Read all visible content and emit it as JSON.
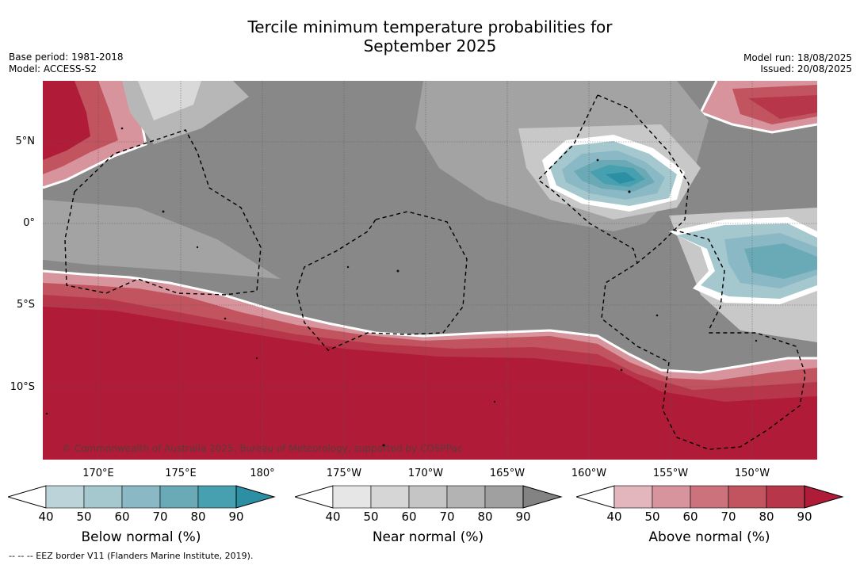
{
  "title_line1": "Tercile minimum temperature probabilities for",
  "title_line2": "September 2025",
  "base_period": "Base period: 1981-2018",
  "model": "Model: ACCESS-S2",
  "model_run": "Model run: 18/08/2025",
  "issued": "Issued: 20/08/2025",
  "lat_labels": [
    "5°N",
    "0°",
    "5°S",
    "10°S"
  ],
  "lon_labels": [
    "170°E",
    "175°E",
    "180°",
    "175°W",
    "170°W",
    "165°W",
    "160°W",
    "155°W",
    "150°W"
  ],
  "credit": "© Commonwealth of Australia 2025, Bureau of Meteorology, supported by COSPPac",
  "footer": "--  --  -- EEZ border V11 (Flanders Marine Institute, 2019).",
  "colorbars": [
    {
      "label": "Below normal (%)",
      "ticks": [
        "40",
        "50",
        "60",
        "70",
        "80",
        "90"
      ],
      "colors": [
        "#ffffff",
        "#bcd3da",
        "#a5c8cf",
        "#8ab9c5",
        "#6aaab7",
        "#47a0b0",
        "#2c8fa3"
      ]
    },
    {
      "label": "Near normal (%)",
      "ticks": [
        "40",
        "50",
        "60",
        "70",
        "80",
        "90"
      ],
      "colors": [
        "#ffffff",
        "#e6e6e6",
        "#d6d6d6",
        "#c5c5c5",
        "#b3b3b3",
        "#a0a0a0",
        "#838383"
      ]
    },
    {
      "label": "Above normal (%)",
      "ticks": [
        "40",
        "50",
        "60",
        "70",
        "80",
        "90"
      ],
      "colors": [
        "#ffffff",
        "#e2b6bc",
        "#d8949c",
        "#cb727d",
        "#c1545f",
        "#b8364a",
        "#b01c38"
      ]
    }
  ],
  "map_colors": {
    "near_90": "#888888",
    "near_80": "#a3a3a3",
    "near_70": "#b7b7b7",
    "near_60": "#c8c8c8",
    "near_50": "#d9d9d9",
    "above_90": "#b01c38",
    "above_80": "#b8364a",
    "above_70": "#c1545f",
    "above_60": "#cb727d",
    "above_50": "#d8949c",
    "below_90": "#2c8fa3",
    "below_80": "#47a0b0",
    "below_70": "#6aaab7",
    "below_60": "#8ab9c5",
    "below_50": "#a5c8cf"
  }
}
